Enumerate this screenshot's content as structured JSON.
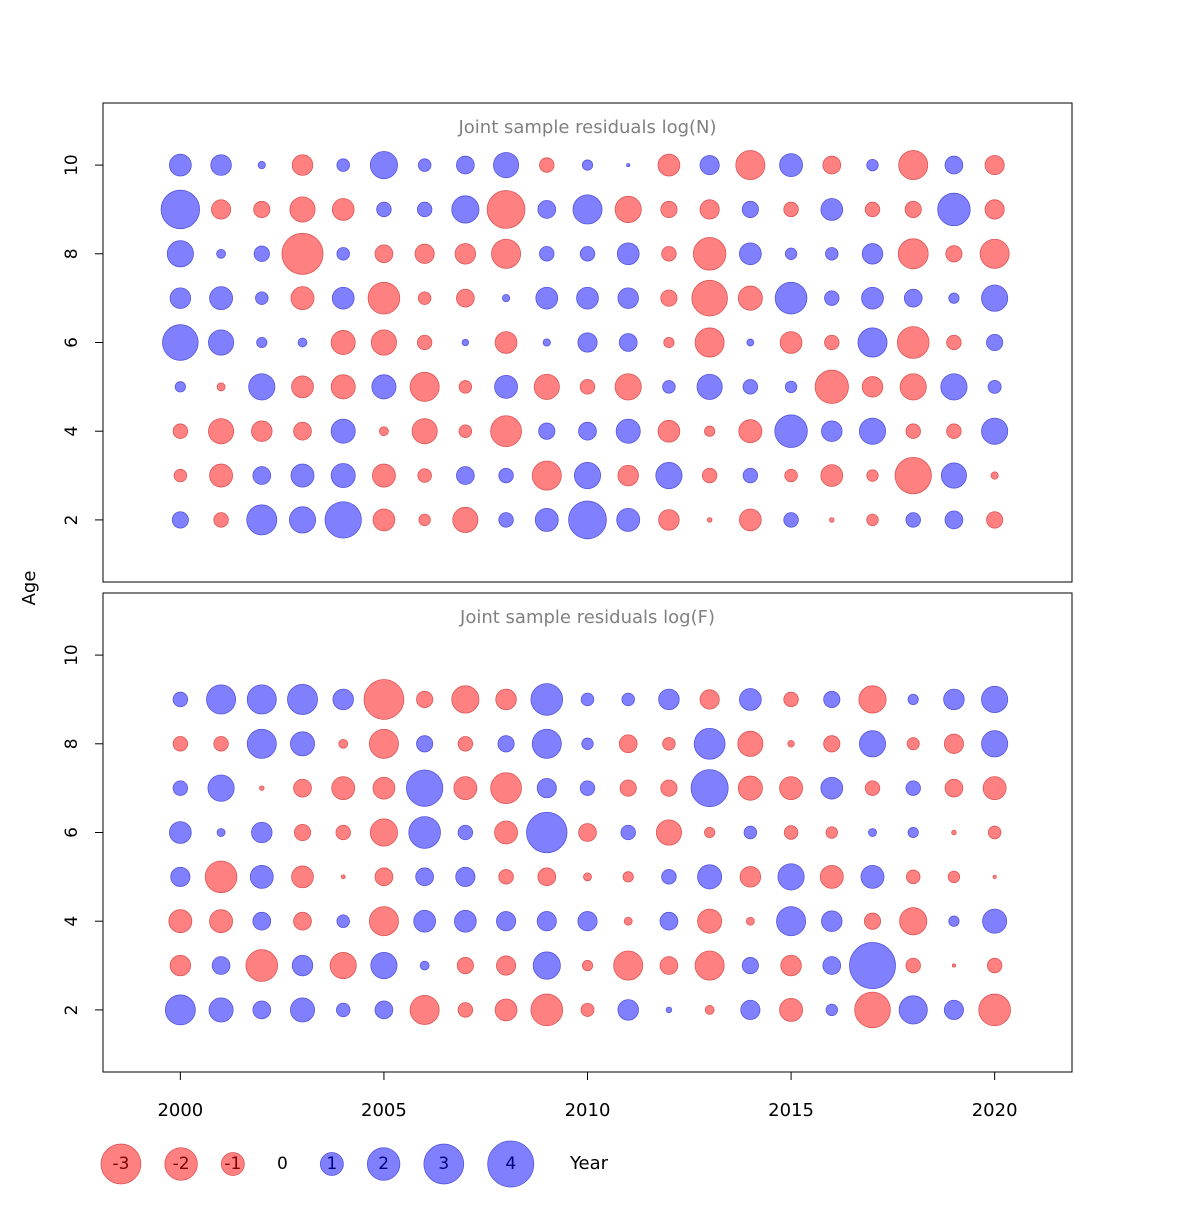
{
  "colors": {
    "positive": "#8080ff",
    "positive_stroke": "#5555dd",
    "negative": "#ff8080",
    "negative_stroke": "#dd5555",
    "title": "#808080",
    "axis": "#000000",
    "legend_positive_text": "#000080",
    "legend_negative_text": "#800000"
  },
  "y_axis_label": "Age",
  "x_axis_label": "Year",
  "chart_data": [
    {
      "type": "scatter",
      "subtype": "bubble",
      "title": "Joint sample residuals log(N)",
      "xlabel": "",
      "ylabel": "Age",
      "xlim": [
        1998.1,
        2021.9
      ],
      "ylim": [
        0.6,
        11.4
      ],
      "xticks": [],
      "yticks": [
        2,
        4,
        6,
        8,
        10
      ],
      "years": [
        2000,
        2001,
        2002,
        2003,
        2004,
        2005,
        2006,
        2007,
        2008,
        2009,
        2010,
        2011,
        2012,
        2013,
        2014,
        2015,
        2016,
        2017,
        2018,
        2019,
        2020
      ],
      "ages": [
        2,
        3,
        4,
        5,
        6,
        7,
        8,
        9,
        10
      ],
      "residuals": {
        "10": [
          0.9,
          0.8,
          0.1,
          -0.8,
          0.3,
          1.4,
          0.3,
          0.6,
          1.2,
          -0.4,
          0.2,
          0.02,
          -0.9,
          0.7,
          -1.6,
          1.0,
          -0.6,
          0.25,
          -1.6,
          0.6,
          -0.7
        ],
        "9": [
          2.8,
          -0.7,
          -0.5,
          -1.2,
          -0.9,
          0.4,
          0.4,
          1.4,
          -2.7,
          0.6,
          1.6,
          -1.3,
          -0.5,
          -0.7,
          0.5,
          -0.4,
          0.9,
          -0.4,
          -0.5,
          2.0,
          -0.7
        ],
        "8": [
          1.3,
          0.15,
          0.45,
          -3.2,
          0.3,
          -0.6,
          -0.7,
          -0.8,
          -1.6,
          0.4,
          0.4,
          0.9,
          -0.4,
          -2.0,
          0.9,
          0.25,
          0.3,
          0.8,
          -1.7,
          -0.5,
          -1.6
        ],
        "7": [
          0.8,
          1.0,
          0.3,
          -1.0,
          0.9,
          -1.9,
          -0.3,
          -0.6,
          0.1,
          0.9,
          0.9,
          0.8,
          -0.5,
          -2.4,
          -1.1,
          1.9,
          0.4,
          0.9,
          0.6,
          0.2,
          1.3
        ],
        "6": [
          2.4,
          1.2,
          0.2,
          0.15,
          -1.1,
          -1.2,
          -0.4,
          0.08,
          -0.9,
          0.1,
          0.7,
          0.6,
          -0.2,
          -1.6,
          0.09,
          -0.9,
          -0.4,
          1.6,
          -1.9,
          -0.4,
          0.5
        ],
        "5": [
          0.2,
          -0.12,
          1.3,
          -0.9,
          -1.1,
          1.1,
          -1.6,
          -0.3,
          1.0,
          -1.2,
          -0.4,
          -1.3,
          0.3,
          1.2,
          0.4,
          0.25,
          -2.1,
          -0.8,
          -1.3,
          1.3,
          0.32
        ],
        "4": [
          -0.4,
          -1.2,
          -0.8,
          -0.6,
          1.1,
          -0.15,
          -1.2,
          -0.3,
          -1.8,
          0.5,
          0.6,
          1.1,
          -0.9,
          -0.2,
          -1.0,
          2.0,
          0.8,
          1.3,
          -0.4,
          -0.4,
          1.3
        ],
        "3": [
          -0.3,
          -1.0,
          0.6,
          1.0,
          1.1,
          -1.0,
          -0.35,
          0.6,
          0.4,
          -1.6,
          1.3,
          -0.8,
          1.3,
          -0.4,
          0.4,
          -0.3,
          -0.9,
          -0.25,
          -2.5,
          1.2,
          -0.1
        ],
        "2": [
          0.5,
          -0.4,
          1.7,
          1.3,
          2.5,
          -0.9,
          -0.25,
          -1.2,
          0.4,
          1.0,
          2.7,
          1.0,
          -0.8,
          -0.04,
          -0.9,
          0.4,
          -0.04,
          -0.25,
          0.4,
          0.6,
          -0.5
        ]
      }
    },
    {
      "type": "scatter",
      "subtype": "bubble",
      "title": "Joint sample residuals log(F)",
      "xlabel": "Year",
      "ylabel": "Age",
      "xlim": [
        1998.1,
        2021.9
      ],
      "ylim": [
        0.6,
        11.4
      ],
      "xticks": [
        2000,
        2005,
        2010,
        2015,
        2020
      ],
      "yticks": [
        2,
        4,
        6,
        8,
        10
      ],
      "years": [
        2000,
        2001,
        2002,
        2003,
        2004,
        2005,
        2006,
        2007,
        2008,
        2009,
        2010,
        2011,
        2012,
        2013,
        2014,
        2015,
        2016,
        2017,
        2018,
        2019,
        2020
      ],
      "ages": [
        2,
        3,
        4,
        5,
        6,
        7,
        8,
        9
      ],
      "residuals": {
        "9": [
          0.4,
          1.6,
          1.6,
          1.7,
          0.8,
          -3.0,
          -0.5,
          -1.4,
          -0.8,
          1.9,
          0.3,
          0.3,
          0.8,
          -0.7,
          0.9,
          -0.4,
          0.5,
          -1.4,
          0.2,
          0.8,
          1.3
        ],
        "8": [
          -0.4,
          -0.4,
          1.6,
          1.1,
          -0.15,
          -1.6,
          0.5,
          -0.4,
          0.5,
          1.6,
          0.25,
          -0.6,
          -0.3,
          1.8,
          -1.2,
          -0.08,
          -0.5,
          1.3,
          -0.28,
          -0.7,
          1.3
        ],
        "7": [
          0.4,
          1.3,
          -0.04,
          -0.6,
          -1.0,
          -0.9,
          2.5,
          -1.0,
          -1.8,
          0.7,
          0.4,
          -0.5,
          -0.5,
          2.6,
          -1.1,
          -1.0,
          0.9,
          -0.4,
          0.4,
          -0.6,
          -1.0
        ],
        "6": [
          0.9,
          0.12,
          0.8,
          -0.5,
          -0.4,
          -1.4,
          1.9,
          0.4,
          -1.0,
          3.1,
          -0.6,
          0.4,
          -1.2,
          -0.2,
          0.3,
          -0.35,
          -0.25,
          0.12,
          0.2,
          -0.04,
          -0.3
        ],
        "5": [
          0.7,
          -1.9,
          1.0,
          -0.9,
          -0.03,
          -0.6,
          0.6,
          0.7,
          -0.4,
          -0.6,
          -0.12,
          -0.2,
          0.4,
          1.1,
          -0.8,
          1.3,
          -1.0,
          1.0,
          -0.35,
          -0.25,
          -0.02
        ],
        "4": [
          -1.0,
          -1.0,
          0.6,
          -0.6,
          0.3,
          -1.6,
          0.9,
          0.9,
          0.7,
          0.7,
          0.7,
          -0.12,
          0.6,
          -1.1,
          -0.12,
          1.6,
          0.8,
          -0.5,
          -1.4,
          0.2,
          1.1
        ],
        "3": [
          -0.8,
          0.6,
          -1.9,
          0.8,
          -1.3,
          1.3,
          0.15,
          -0.5,
          -0.7,
          1.4,
          -0.2,
          -1.6,
          -0.6,
          -1.6,
          0.5,
          -0.8,
          0.6,
          4.0,
          -0.4,
          -0.02,
          -0.4
        ],
        "2": [
          1.7,
          1.1,
          0.6,
          1.1,
          0.35,
          0.6,
          -1.6,
          -0.4,
          -0.9,
          -1.9,
          -0.32,
          0.8,
          0.06,
          -0.15,
          0.7,
          -1.0,
          0.25,
          -2.4,
          1.5,
          0.7,
          -1.9
        ]
      }
    }
  ],
  "legend": [
    {
      "label": "-3",
      "value": -3
    },
    {
      "label": "-2",
      "value": -2
    },
    {
      "label": "-1",
      "value": -1
    },
    {
      "label": "0",
      "value": 0
    },
    {
      "label": "1",
      "value": 1
    },
    {
      "label": "2",
      "value": 2
    },
    {
      "label": "3",
      "value": 3
    },
    {
      "label": "4",
      "value": 4
    }
  ]
}
